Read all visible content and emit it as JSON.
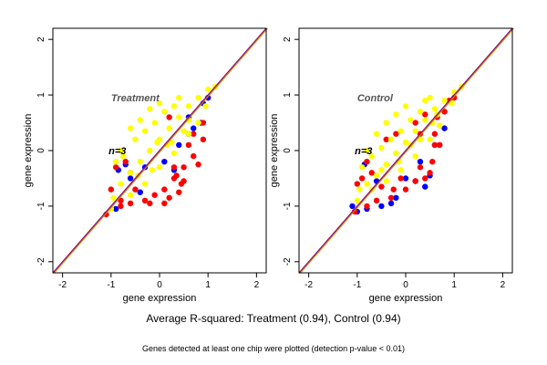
{
  "summary": "Average R-squared: Treatment (0.94), Control (0.94)",
  "footnote": "Genes detected at least one chip were plotted (detection p-value < 0.01)",
  "colors": {
    "red": "#ff0000",
    "blue": "#0000ff",
    "yellow": "#ffff00",
    "diag_orange": "#d08000",
    "diag_purple": "#800080"
  },
  "chart_data": [
    {
      "type": "scatter",
      "title": "Treatment",
      "annotation": "n=3",
      "xlabel": "gene expression",
      "ylabel": "gene expression",
      "xlim": [
        -2.2,
        2.2
      ],
      "ylim": [
        -2.2,
        2.2
      ],
      "xticks": [
        -2,
        -1,
        0,
        1,
        2
      ],
      "yticks": [
        -2,
        -1,
        0,
        1,
        2
      ],
      "reference_lines": [
        {
          "slope": 1,
          "intercept": 0
        }
      ],
      "series": [
        {
          "color": "blue",
          "points": [
            [
              -0.9,
              -1.05
            ],
            [
              -0.6,
              -0.5
            ],
            [
              -0.3,
              -0.3
            ],
            [
              0.1,
              -0.2
            ],
            [
              0.4,
              0.1
            ],
            [
              0.6,
              0.3
            ],
            [
              0.9,
              0.85
            ],
            [
              1.0,
              0.95
            ],
            [
              0.7,
              0.4
            ],
            [
              -0.85,
              -0.35
            ],
            [
              -0.7,
              -0.25
            ],
            [
              0.3,
              -0.35
            ],
            [
              0.85,
              0.5
            ],
            [
              0.6,
              0.6
            ],
            [
              -0.4,
              -0.75
            ]
          ]
        },
        {
          "color": "red",
          "points": [
            [
              -1.1,
              -1.15
            ],
            [
              -0.8,
              -1.0
            ],
            [
              -0.6,
              -0.95
            ],
            [
              -0.3,
              -0.9
            ],
            [
              -0.1,
              -0.8
            ],
            [
              0.1,
              -0.7
            ],
            [
              0.3,
              -0.5
            ],
            [
              0.5,
              -0.3
            ],
            [
              0.7,
              -0.1
            ],
            [
              0.9,
              0.2
            ],
            [
              0.5,
              -0.55
            ],
            [
              0.2,
              -0.85
            ],
            [
              -0.2,
              -0.95
            ],
            [
              0.4,
              -0.75
            ],
            [
              0.8,
              -0.25
            ],
            [
              0.3,
              -0.3
            ],
            [
              0.6,
              0.1
            ],
            [
              -0.5,
              -0.7
            ],
            [
              0.45,
              -0.6
            ],
            [
              0.1,
              -0.95
            ],
            [
              0.35,
              -0.45
            ],
            [
              -0.8,
              -0.9
            ],
            [
              -0.9,
              -0.3
            ],
            [
              -0.7,
              -0.2
            ],
            [
              -1.0,
              -0.7
            ],
            [
              -0.6,
              -0.4
            ],
            [
              0.2,
              0.6
            ],
            [
              0.9,
              0.5
            ],
            [
              0.7,
              0.3
            ]
          ]
        },
        {
          "color": "yellow",
          "points": [
            [
              -1.0,
              -1.05
            ],
            [
              -0.8,
              -0.6
            ],
            [
              -0.6,
              -0.4
            ],
            [
              -0.4,
              -0.2
            ],
            [
              -0.2,
              0.0
            ],
            [
              0.0,
              0.2
            ],
            [
              0.2,
              0.4
            ],
            [
              0.4,
              0.6
            ],
            [
              0.6,
              0.8
            ],
            [
              0.8,
              0.95
            ],
            [
              1.0,
              1.1
            ],
            [
              1.15,
              1.15
            ],
            [
              -0.9,
              -0.2
            ],
            [
              -0.75,
              -0.1
            ],
            [
              -0.5,
              0.2
            ],
            [
              -0.3,
              0.35
            ],
            [
              -0.1,
              0.5
            ],
            [
              0.1,
              0.7
            ],
            [
              0.3,
              0.8
            ],
            [
              -0.6,
              -0.8
            ],
            [
              -0.3,
              -0.6
            ],
            [
              0.0,
              -0.3
            ],
            [
              0.3,
              -0.05
            ],
            [
              0.6,
              0.3
            ],
            [
              0.8,
              0.5
            ],
            [
              -0.8,
              0.0
            ],
            [
              -0.6,
              0.4
            ],
            [
              -0.4,
              0.55
            ],
            [
              -0.2,
              0.75
            ],
            [
              0.0,
              0.85
            ],
            [
              0.4,
              0.95
            ],
            [
              0.5,
              0.35
            ],
            [
              -0.45,
              -0.45
            ],
            [
              -0.05,
              0.15
            ],
            [
              0.25,
              0.15
            ],
            [
              0.6,
              0.55
            ],
            [
              0.95,
              0.8
            ],
            [
              -0.15,
              -0.35
            ],
            [
              0.15,
              0.1
            ],
            [
              -0.95,
              -0.85
            ]
          ]
        }
      ]
    },
    {
      "type": "scatter",
      "title": "Control",
      "annotation": "n=3",
      "xlabel": "gene expression",
      "ylabel": "gene expression",
      "xlim": [
        -2.2,
        2.2
      ],
      "ylim": [
        -2.2,
        2.2
      ],
      "xticks": [
        -2,
        -1,
        0,
        1,
        2
      ],
      "yticks": [
        -2,
        -1,
        0,
        1,
        2
      ],
      "reference_lines": [
        {
          "slope": 1,
          "intercept": 0
        }
      ],
      "series": [
        {
          "color": "blue",
          "points": [
            [
              -1.0,
              -1.1
            ],
            [
              -0.8,
              -1.05
            ],
            [
              -0.5,
              -1.0
            ],
            [
              -0.3,
              -0.95
            ],
            [
              0.0,
              -0.5
            ],
            [
              0.3,
              -0.2
            ],
            [
              0.6,
              0.1
            ],
            [
              0.8,
              0.4
            ],
            [
              0.7,
              0.1
            ],
            [
              -0.85,
              -0.25
            ],
            [
              -0.6,
              -0.55
            ],
            [
              0.5,
              -0.45
            ],
            [
              -0.2,
              -0.85
            ],
            [
              0.4,
              -0.65
            ],
            [
              0.2,
              -0.55
            ],
            [
              -1.1,
              -1.0
            ]
          ]
        },
        {
          "color": "red",
          "points": [
            [
              -1.05,
              -1.1
            ],
            [
              -0.8,
              -1.0
            ],
            [
              -0.6,
              -0.9
            ],
            [
              -0.3,
              -0.85
            ],
            [
              0.0,
              -0.7
            ],
            [
              0.2,
              -0.55
            ],
            [
              0.4,
              -0.5
            ],
            [
              0.5,
              -0.4
            ],
            [
              0.7,
              0.1
            ],
            [
              0.8,
              0.7
            ],
            [
              1.0,
              0.95
            ],
            [
              -0.5,
              -0.65
            ],
            [
              -0.9,
              -0.5
            ],
            [
              -0.8,
              -0.2
            ],
            [
              -0.7,
              -0.4
            ],
            [
              0.2,
              0.5
            ],
            [
              0.3,
              0.3
            ],
            [
              0.6,
              0.3
            ],
            [
              0.65,
              0.6
            ],
            [
              0.9,
              0.9
            ],
            [
              -0.2,
              0.3
            ],
            [
              -0.4,
              0.2
            ],
            [
              0.3,
              -0.3
            ],
            [
              -0.1,
              -0.5
            ],
            [
              0.55,
              -0.2
            ],
            [
              0.6,
              0.1
            ],
            [
              0.4,
              0.65
            ],
            [
              -1.0,
              -0.6
            ],
            [
              -0.25,
              -0.7
            ]
          ]
        },
        {
          "color": "yellow",
          "points": [
            [
              -1.0,
              -0.9
            ],
            [
              -0.8,
              -0.6
            ],
            [
              -0.6,
              -0.45
            ],
            [
              -0.4,
              -0.25
            ],
            [
              -0.2,
              -0.05
            ],
            [
              0.0,
              0.15
            ],
            [
              0.2,
              0.35
            ],
            [
              0.4,
              0.55
            ],
            [
              0.6,
              0.75
            ],
            [
              0.8,
              0.9
            ],
            [
              1.0,
              1.05
            ],
            [
              1.15,
              1.15
            ],
            [
              -0.9,
              -0.3
            ],
            [
              -0.7,
              -0.1
            ],
            [
              -0.5,
              0.05
            ],
            [
              -0.3,
              0.2
            ],
            [
              -0.1,
              0.35
            ],
            [
              0.1,
              0.55
            ],
            [
              0.3,
              0.7
            ],
            [
              -0.7,
              -0.7
            ],
            [
              -0.4,
              -0.55
            ],
            [
              -0.1,
              -0.35
            ],
            [
              0.2,
              -0.1
            ],
            [
              0.5,
              0.2
            ],
            [
              0.7,
              0.45
            ],
            [
              -0.8,
              0.0
            ],
            [
              -0.6,
              0.3
            ],
            [
              -0.4,
              0.5
            ],
            [
              -0.2,
              0.65
            ],
            [
              0.0,
              0.8
            ],
            [
              0.4,
              0.9
            ],
            [
              0.55,
              0.5
            ],
            [
              -0.5,
              -0.35
            ],
            [
              0.1,
              0.1
            ],
            [
              0.3,
              0.2
            ],
            [
              0.65,
              0.65
            ],
            [
              0.95,
              0.85
            ],
            [
              -0.15,
              -0.2
            ],
            [
              -0.95,
              -0.7
            ],
            [
              0.5,
              0.95
            ]
          ]
        }
      ]
    }
  ]
}
